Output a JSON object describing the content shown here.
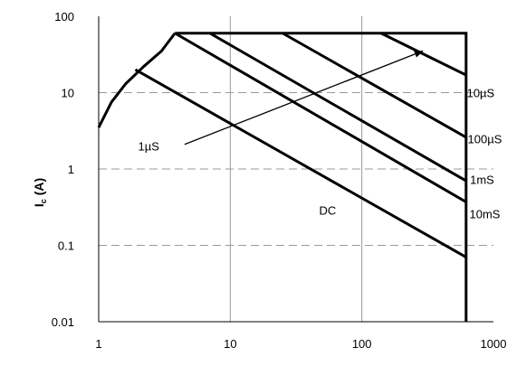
{
  "chart_data": {
    "type": "line",
    "title": "",
    "xlabel": "",
    "ylabel": {
      "main": "I",
      "sub": "c",
      "unit": "(A)"
    },
    "xscale": "log",
    "yscale": "log",
    "xlim": [
      1,
      1000
    ],
    "ylim": [
      0.01,
      100
    ],
    "grid": true,
    "x_ticks": [
      "1",
      "10",
      "100",
      "1000"
    ],
    "y_ticks": [
      "100",
      "10",
      "1",
      "0.1",
      "0.01"
    ],
    "curves": [
      {
        "points": [
          [
            1,
            3.5
          ],
          [
            1.25,
            7.5
          ],
          [
            1.6,
            13
          ],
          [
            2.2,
            22
          ],
          [
            3.0,
            35
          ],
          [
            3.8,
            60
          ]
        ]
      }
    ],
    "series": [
      {
        "name": "DC",
        "points": [
          [
            1.9,
            20
          ],
          [
            620,
            0.07
          ]
        ]
      },
      {
        "name": "10mS",
        "points": [
          [
            3.8,
            60
          ],
          [
            620,
            0.37
          ]
        ]
      },
      {
        "name": "1mS",
        "points": [
          [
            7.0,
            60
          ],
          [
            620,
            0.7
          ]
        ]
      },
      {
        "name": "100µS",
        "points": [
          [
            25,
            60
          ],
          [
            620,
            2.6
          ]
        ]
      },
      {
        "name": "10µS",
        "points": [
          [
            140,
            60
          ],
          [
            620,
            17
          ]
        ]
      }
    ],
    "boundary": [
      [
        3.8,
        60
      ],
      [
        620,
        60
      ],
      [
        620,
        0.01
      ]
    ],
    "labels": [
      {
        "text": "10µS",
        "x": 800,
        "y": 10
      },
      {
        "text": "100µS",
        "x": 860,
        "y": 2.5
      },
      {
        "text": "1mS",
        "x": 820,
        "y": 0.73
      },
      {
        "text": "10mS",
        "x": 860,
        "y": 0.26
      },
      {
        "text": "DC",
        "x": 55,
        "y": 0.29
      },
      {
        "text": "1µS",
        "x": 2.4,
        "y": 2.0
      }
    ],
    "arrow": {
      "from": [
        4.5,
        2.1
      ],
      "to": [
        290,
        35
      ]
    }
  }
}
